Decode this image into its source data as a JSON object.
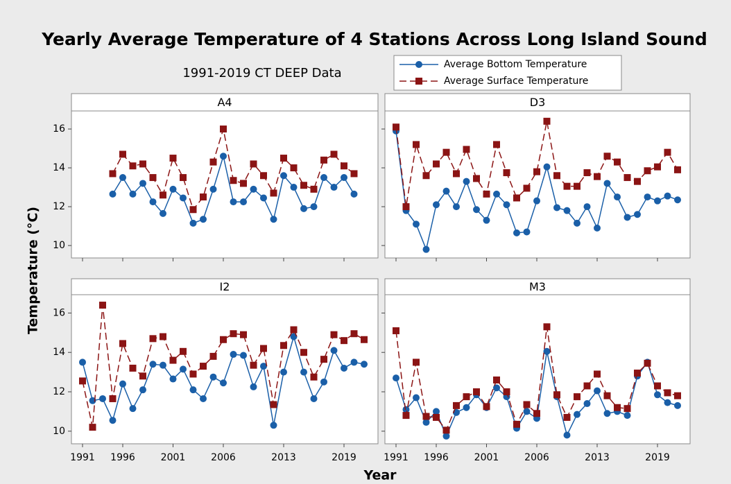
{
  "title": "Yearly Average Temperature of 4 Stations Across Long Island Sound",
  "subtitle": "1991-2019 CT DEEP Data",
  "x_label": "Year",
  "y_label": "Temperature (°C)",
  "categories": [
    "1991",
    null,
    null,
    null,
    "1996",
    null,
    null,
    null,
    null,
    "2001",
    null,
    null,
    null,
    null,
    "2006",
    null,
    null,
    null,
    null,
    null,
    "2013",
    null,
    null,
    null,
    null,
    null,
    "2019",
    null,
    null
  ],
  "chart_data": [
    {
      "type": "line",
      "title": "A4",
      "ylim": [
        9.36,
        16.93
      ],
      "yticks": [
        10,
        12,
        14,
        16
      ],
      "series": [
        {
          "name": "Average Bottom Temperature",
          "color": "#1a5fa8",
          "marker": "circle",
          "values": [
            null,
            null,
            null,
            12.65,
            13.5,
            12.65,
            13.2,
            12.25,
            11.65,
            12.9,
            12.45,
            11.15,
            11.35,
            12.9,
            14.6,
            12.25,
            12.25,
            12.9,
            12.45,
            11.35,
            13.6,
            13.0,
            11.9,
            12.0,
            13.5,
            13.0,
            13.5,
            12.65,
            null
          ]
        },
        {
          "name": "Average Surface Temperature",
          "color": "#8b1414",
          "marker": "square",
          "values": [
            null,
            null,
            null,
            13.7,
            14.7,
            14.1,
            14.2,
            13.5,
            12.6,
            14.5,
            13.5,
            11.85,
            12.5,
            14.3,
            16.0,
            13.35,
            13.2,
            14.2,
            13.6,
            12.7,
            14.5,
            14.0,
            13.1,
            12.9,
            14.4,
            14.7,
            14.1,
            13.7,
            null
          ]
        }
      ]
    },
    {
      "type": "line",
      "title": "D3",
      "ylim": [
        9.36,
        16.93
      ],
      "yticks": [
        10,
        12,
        14,
        16
      ],
      "series": [
        {
          "name": "Average Bottom Temperature",
          "color": "#1a5fa8",
          "marker": "circle",
          "values": [
            15.9,
            11.8,
            11.1,
            9.8,
            12.1,
            12.8,
            12.0,
            13.3,
            11.85,
            11.3,
            12.65,
            12.1,
            10.65,
            10.7,
            12.3,
            14.05,
            11.95,
            11.8,
            11.15,
            12.0,
            10.9,
            13.2,
            12.5,
            11.45,
            11.6,
            12.5,
            12.3,
            12.55,
            12.35
          ]
        },
        {
          "name": "Average Surface Temperature",
          "color": "#8b1414",
          "marker": "square",
          "values": [
            16.1,
            12.0,
            15.2,
            13.6,
            14.2,
            14.8,
            13.7,
            14.95,
            13.45,
            12.65,
            15.2,
            13.75,
            12.45,
            12.95,
            13.8,
            16.4,
            13.6,
            13.05,
            13.05,
            13.75,
            13.55,
            14.6,
            14.3,
            13.5,
            13.3,
            13.85,
            14.05,
            14.8,
            13.9
          ]
        }
      ]
    },
    {
      "type": "line",
      "title": "I2",
      "ylim": [
        9.36,
        16.93
      ],
      "yticks": [
        10,
        12,
        14,
        16
      ],
      "series": [
        {
          "name": "Average Bottom Temperature",
          "color": "#1a5fa8",
          "marker": "circle",
          "values": [
            13.5,
            11.55,
            11.65,
            10.55,
            12.4,
            11.15,
            12.1,
            13.4,
            13.35,
            12.65,
            13.15,
            12.1,
            11.65,
            12.75,
            12.45,
            13.9,
            13.85,
            12.25,
            13.3,
            10.3,
            13.0,
            14.8,
            13.0,
            11.65,
            12.5,
            14.1,
            13.2,
            13.5,
            13.4
          ]
        },
        {
          "name": "Average Surface Temperature",
          "color": "#8b1414",
          "marker": "square",
          "values": [
            12.55,
            10.2,
            16.4,
            11.65,
            14.45,
            13.2,
            12.8,
            14.7,
            14.8,
            13.6,
            14.05,
            12.9,
            13.3,
            13.8,
            14.65,
            14.95,
            14.9,
            13.35,
            14.2,
            11.35,
            14.35,
            15.15,
            14.0,
            12.75,
            13.65,
            14.9,
            14.6,
            14.95,
            14.65
          ]
        }
      ]
    },
    {
      "type": "line",
      "title": "M3",
      "ylim": [
        9.36,
        16.93
      ],
      "yticks": [
        10,
        12,
        14,
        16
      ],
      "series": [
        {
          "name": "Average Bottom Temperature",
          "color": "#1a5fa8",
          "marker": "circle",
          "values": [
            12.7,
            11.1,
            11.7,
            10.45,
            11.0,
            9.75,
            10.95,
            11.2,
            11.85,
            11.2,
            12.2,
            11.75,
            10.15,
            11.0,
            10.65,
            14.05,
            11.75,
            9.8,
            10.85,
            11.4,
            12.05,
            10.9,
            11.0,
            10.8,
            12.8,
            13.5,
            11.85,
            11.45,
            11.3
          ]
        },
        {
          "name": "Average Surface Temperature",
          "color": "#8b1414",
          "marker": "square",
          "values": [
            15.1,
            10.8,
            13.5,
            10.75,
            10.7,
            10.05,
            11.3,
            11.75,
            12.0,
            11.25,
            12.6,
            12.0,
            10.35,
            11.35,
            10.9,
            15.3,
            11.85,
            10.7,
            11.75,
            12.3,
            12.9,
            11.8,
            11.2,
            11.15,
            12.95,
            13.45,
            12.3,
            11.95,
            11.8
          ]
        }
      ]
    }
  ]
}
